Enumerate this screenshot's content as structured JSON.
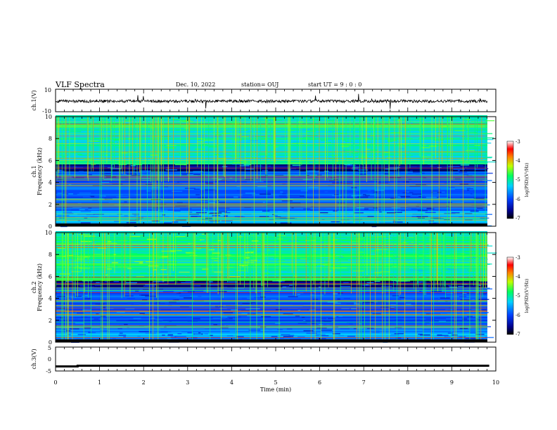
{
  "header": {
    "title": "VLF Spectra",
    "date": "Dec. 10, 2022",
    "station": "station= OUJ",
    "start": "start  UT =   9 : 0  : 0"
  },
  "chart_data": [
    {
      "type": "line",
      "panel": "ch1-waveform",
      "ylabel": "ch.1(V)",
      "ylim": [
        -10,
        10
      ],
      "yticks": [
        "10",
        "-10"
      ],
      "xlim": [
        0,
        10
      ]
    },
    {
      "type": "heatmap",
      "panel": "ch1-spectrogram",
      "ylabel_line1": "ch.1",
      "ylabel_line2": "Frequency (kHz)",
      "ylim": [
        0,
        10
      ],
      "yticks": [
        "0",
        "2",
        "4",
        "6",
        "8",
        "10"
      ],
      "xlim": [
        0,
        10
      ],
      "colorbar": {
        "label": "log(PSD)(V²/Hz)",
        "range": [
          -7,
          -3
        ],
        "ticks": [
          "-3",
          "-4",
          "-5",
          "-6",
          "-7"
        ]
      }
    },
    {
      "type": "heatmap",
      "panel": "ch2-spectrogram",
      "ylabel_line1": "ch.2",
      "ylabel_line2": "Frequency (kHz)",
      "ylim": [
        0,
        10
      ],
      "yticks": [
        "0",
        "2",
        "4",
        "6",
        "8",
        "10"
      ],
      "xlim": [
        0,
        10
      ],
      "colorbar": {
        "label": "log(PSD)(V²/Hz)",
        "range": [
          -7,
          -3
        ],
        "ticks": [
          "-3",
          "-4",
          "-5",
          "-6",
          "-7"
        ]
      }
    },
    {
      "type": "line",
      "panel": "ch3-waveform",
      "ylabel": "ch.3(V)",
      "ylim": [
        -5,
        5
      ],
      "yticks": [
        "5",
        "0",
        "-5"
      ],
      "xlim": [
        0,
        10
      ],
      "series": [
        {
          "x": [
            0,
            0.5,
            0.5,
            9.85
          ],
          "values": [
            -3.1,
            -3.1,
            -2.8,
            -2.8
          ]
        }
      ]
    }
  ],
  "xaxis": {
    "label": "Time (min)",
    "ticks": [
      "0",
      "1",
      "2",
      "3",
      "4",
      "5",
      "6",
      "7",
      "8",
      "9",
      "10"
    ]
  },
  "colors": {
    "axis": "#000000",
    "waveform": "#000000"
  }
}
